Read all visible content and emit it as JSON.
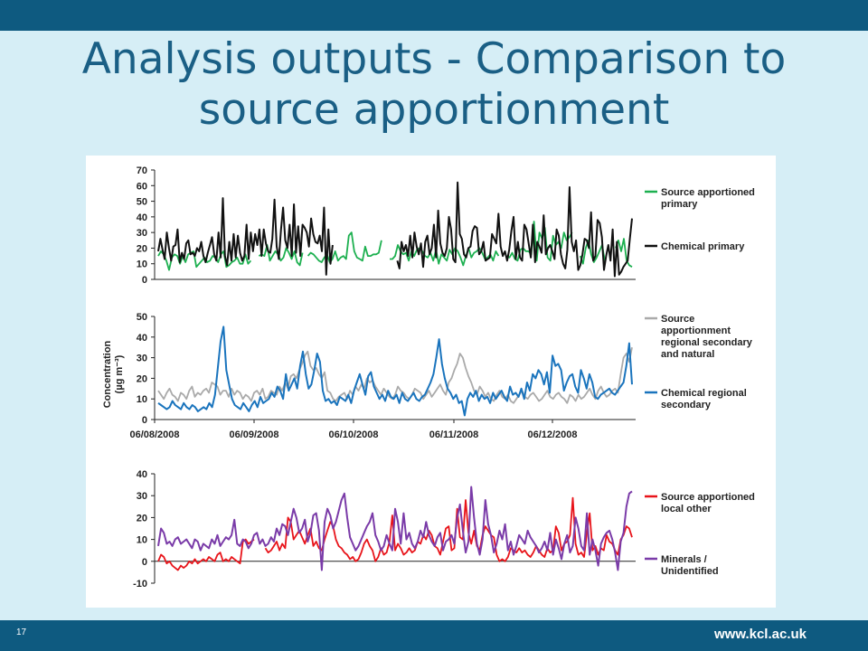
{
  "header": {
    "title_line1": "Analysis outputs - Comparison to",
    "title_line2": "source apportionment"
  },
  "footer": {
    "slide_number": "17",
    "url": "www.kcl.ac.uk"
  },
  "chart_data": [
    {
      "type": "line",
      "ylim": [
        0,
        70
      ],
      "yticks": [
        "0",
        "10",
        "20",
        "30",
        "40",
        "50",
        "60",
        "70"
      ],
      "ylabel": "",
      "series": [
        {
          "name": "Source apportioned primary",
          "color": "#1db050",
          "values": [
            15,
            18,
            16,
            12,
            6,
            14,
            16,
            15,
            10,
            15,
            11,
            16,
            17,
            18,
            8,
            10,
            12,
            14,
            11,
            12,
            15,
            14,
            11,
            16,
            18,
            8,
            9,
            11,
            12,
            14,
            10,
            10,
            16,
            10,
            12,
            null,
            null,
            15,
            16,
            15,
            22,
            12,
            15,
            18,
            16,
            12,
            14,
            20,
            17,
            13,
            18,
            11,
            9,
            17,
            null,
            15,
            17,
            16,
            14,
            12,
            11,
            14,
            16,
            11,
            13,
            18,
            12,
            14,
            15,
            13,
            28,
            30,
            18,
            14,
            13,
            12,
            21,
            15,
            15,
            16,
            16,
            17,
            25,
            null,
            null,
            13,
            13,
            15,
            22,
            18,
            16,
            17,
            12,
            18,
            15,
            19,
            20,
            18,
            15,
            14,
            17,
            12,
            19,
            10,
            16,
            14,
            12,
            19,
            16,
            20,
            18,
            14,
            9,
            15,
            20,
            14,
            17,
            18,
            20,
            17,
            13,
            14,
            16,
            12,
            18,
            15,
            null,
            null,
            15,
            14,
            17,
            13,
            12,
            19,
            20,
            18,
            18,
            16,
            37,
            12,
            30,
            26,
            33,
            14,
            12,
            28,
            22,
            24,
            20,
            30,
            25,
            27,
            30,
            null,
            null,
            15,
            10,
            20,
            25,
            16,
            11,
            14,
            18,
            22,
            12,
            null,
            null,
            null,
            20,
            25,
            18,
            26,
            12,
            9,
            8
          ]
        },
        {
          "name": "Chemical primary",
          "color": "#111111",
          "values": [
            18,
            26,
            19,
            13,
            30,
            20,
            12,
            21,
            22,
            32,
            11,
            17,
            13,
            23,
            25,
            16,
            17,
            15,
            20,
            18,
            24,
            15,
            11,
            17,
            22,
            27,
            16,
            12,
            30,
            14,
            52,
            15,
            9,
            24,
            12,
            29,
            14,
            28,
            17,
            12,
            15,
            35,
            13,
            30,
            18,
            29,
            22,
            32,
            15,
            32,
            23,
            18,
            17,
            26,
            51,
            21,
            13,
            32,
            46,
            25,
            20,
            35,
            15,
            48,
            17,
            34,
            15,
            35,
            33,
            30,
            21,
            39,
            29,
            24,
            23,
            28,
            18,
            46,
            3,
            32,
            10,
            22,
            null,
            null,
            null,
            null,
            null,
            null,
            null,
            null,
            null,
            null,
            null,
            null,
            null,
            null,
            null,
            null,
            null,
            null,
            null,
            null,
            null,
            null,
            null,
            null,
            null,
            null,
            null,
            null,
            null,
            12,
            7,
            24,
            18,
            22,
            15,
            28,
            14,
            30,
            21,
            16,
            23,
            8,
            24,
            28,
            16,
            20,
            35,
            14,
            44,
            23,
            17,
            15,
            20,
            40,
            32,
            13,
            11,
            62,
            29,
            26,
            16,
            14,
            20,
            21,
            31,
            34,
            33,
            16,
            18,
            24,
            12,
            13,
            14,
            29,
            26,
            23,
            42,
            21,
            15,
            18,
            12,
            19,
            31,
            40,
            13,
            24,
            14,
            12,
            35,
            32,
            23,
            14,
            35,
            11,
            24,
            21,
            17,
            41,
            16,
            20,
            22,
            18,
            13,
            32,
            28,
            16,
            10,
            7,
            19,
            59,
            24,
            18,
            25,
            6,
            9,
            16,
            26,
            25,
            20,
            43,
            12,
            15,
            38,
            36,
            27,
            6,
            15,
            22,
            12,
            32,
            2,
            24,
            3,
            5,
            8,
            10,
            12,
            26,
            39
          ]
        }
      ]
    },
    {
      "type": "line",
      "ylim": [
        0,
        50
      ],
      "yticks": [
        "0",
        "10",
        "20",
        "30",
        "40",
        "50"
      ],
      "ylabel": "Concentration (µg m⁻³)",
      "x_tick_labels": [
        "06/08/2008",
        "06/09/2008",
        "06/10/2008",
        "06/11/2008",
        "06/12/2008"
      ],
      "series": [
        {
          "name": "Source apportionment regional secondary and natural",
          "color": "#aaaaaa",
          "values": [
            14,
            12,
            10,
            13,
            15,
            12,
            11,
            9,
            13,
            12,
            10,
            14,
            16,
            11,
            13,
            12,
            14,
            15,
            13,
            18,
            17,
            16,
            12,
            14,
            14,
            11,
            15,
            12,
            14,
            13,
            10,
            12,
            11,
            9,
            13,
            14,
            12,
            15,
            10,
            11,
            14,
            13,
            12,
            16,
            14,
            18,
            15,
            21,
            22,
            20,
            24,
            27,
            31,
            33,
            26,
            24,
            25,
            22,
            20,
            23,
            14,
            13,
            10,
            9,
            11,
            12,
            13,
            10,
            14,
            12,
            16,
            14,
            17,
            15,
            20,
            18,
            19,
            16,
            14,
            12,
            15,
            13,
            11,
            10,
            12,
            16,
            14,
            13,
            11,
            10,
            12,
            15,
            14,
            13,
            10,
            12,
            14,
            11,
            13,
            15,
            17,
            14,
            12,
            18,
            20,
            24,
            27,
            32,
            30,
            25,
            21,
            18,
            14,
            12,
            16,
            14,
            11,
            13,
            10,
            9,
            12,
            14,
            11,
            10,
            12,
            9,
            8,
            10,
            12,
            14,
            11,
            10,
            12,
            13,
            11,
            9,
            10,
            12,
            14,
            11,
            10,
            12,
            13,
            11,
            10,
            8,
            12,
            11,
            9,
            12,
            10,
            11,
            13,
            15,
            12,
            10,
            14,
            16,
            13,
            11,
            12,
            14,
            15,
            13,
            22,
            30,
            32,
            28,
            35
          ]
        },
        {
          "name": "Chemical regional secondary",
          "color": "#1a74bd",
          "values": [
            8,
            7,
            6,
            5,
            6,
            9,
            7,
            6,
            5,
            8,
            6,
            5,
            7,
            6,
            4,
            5,
            6,
            5,
            8,
            6,
            12,
            25,
            38,
            45,
            24,
            17,
            10,
            7,
            6,
            5,
            8,
            6,
            4,
            7,
            9,
            6,
            11,
            8,
            9,
            10,
            13,
            11,
            16,
            14,
            10,
            22,
            14,
            17,
            20,
            15,
            26,
            33,
            22,
            15,
            17,
            24,
            32,
            28,
            14,
            9,
            10,
            8,
            9,
            7,
            11,
            10,
            9,
            12,
            8,
            14,
            18,
            22,
            17,
            12,
            21,
            23,
            16,
            13,
            10,
            12,
            9,
            14,
            11,
            10,
            12,
            8,
            13,
            10,
            9,
            11,
            13,
            10,
            9,
            11,
            12,
            15,
            18,
            22,
            30,
            39,
            27,
            20,
            15,
            13,
            10,
            12,
            8,
            9,
            2,
            10,
            13,
            11,
            14,
            9,
            12,
            10,
            11,
            8,
            13,
            10,
            12,
            14,
            11,
            9,
            16,
            12,
            13,
            11,
            15,
            10,
            18,
            14,
            22,
            20,
            24,
            22,
            17,
            23,
            13,
            31,
            26,
            27,
            24,
            14,
            18,
            21,
            22,
            16,
            13,
            24,
            20,
            15,
            22,
            18,
            11,
            10,
            12,
            13,
            14,
            15,
            13,
            12,
            14,
            16,
            18,
            26,
            37,
            17
          ]
        }
      ]
    },
    {
      "type": "line",
      "ylim": [
        -10,
        40
      ],
      "yticks": [
        "-10",
        "0",
        "10",
        "20",
        "30",
        "40"
      ],
      "ylabel": "",
      "series": [
        {
          "name": "Source apportioned local other",
          "color": "#e8141a",
          "values": [
            0,
            3,
            2,
            -1,
            0,
            -2,
            -3,
            -4,
            -2,
            -3,
            -2,
            0,
            -1,
            1,
            -1,
            0,
            1,
            0,
            2,
            1,
            0,
            3,
            4,
            0,
            1,
            0,
            2,
            1,
            0,
            -1,
            9,
            10,
            8,
            9,
            10,
            null,
            null,
            null,
            6,
            4,
            5,
            7,
            9,
            5,
            8,
            6,
            20,
            18,
            10,
            12,
            14,
            11,
            8,
            12,
            15,
            7,
            9,
            6,
            5,
            10,
            14,
            18,
            16,
            10,
            7,
            6,
            4,
            3,
            1,
            2,
            0,
            1,
            4,
            8,
            10,
            7,
            5,
            0,
            2,
            6,
            3,
            4,
            9,
            21,
            5,
            8,
            6,
            3,
            4,
            6,
            4,
            5,
            9,
            8,
            12,
            10,
            14,
            12,
            7,
            6,
            3,
            9,
            15,
            16,
            5,
            6,
            24,
            11,
            10,
            28,
            13,
            8,
            14,
            7,
            5,
            12,
            16,
            14,
            12,
            11,
            3,
            0,
            1,
            0,
            2,
            6,
            5,
            4,
            6,
            4,
            5,
            3,
            2,
            4,
            7,
            5,
            3,
            2,
            6,
            4,
            5,
            16,
            13,
            5,
            8,
            9,
            12,
            29,
            8,
            3,
            4,
            2,
            13,
            22,
            5,
            7,
            3,
            6,
            5,
            12,
            9,
            8,
            5,
            3,
            10,
            12,
            16,
            15,
            11
          ]
        },
        {
          "name": "Minerals / Unidentified",
          "color": "#7a3ba8",
          "values": [
            7,
            15,
            13,
            8,
            9,
            7,
            10,
            11,
            8,
            9,
            10,
            8,
            6,
            10,
            9,
            5,
            8,
            7,
            6,
            10,
            8,
            12,
            7,
            9,
            11,
            10,
            12,
            19,
            8,
            7,
            10,
            9,
            6,
            8,
            12,
            13,
            8,
            10,
            7,
            8,
            11,
            9,
            15,
            12,
            17,
            16,
            12,
            18,
            24,
            20,
            13,
            15,
            19,
            9,
            13,
            21,
            22,
            14,
            -4,
            18,
            24,
            21,
            15,
            18,
            23,
            28,
            31,
            20,
            11,
            8,
            5,
            7,
            10,
            13,
            16,
            18,
            22,
            12,
            9,
            5,
            7,
            12,
            8,
            5,
            24,
            18,
            8,
            22,
            10,
            13,
            8,
            6,
            9,
            14,
            11,
            18,
            12,
            9,
            7,
            11,
            13,
            5,
            9,
            10,
            12,
            8,
            20,
            26,
            14,
            4,
            9,
            34,
            20,
            8,
            3,
            10,
            28,
            17,
            12,
            4,
            8,
            14,
            10,
            17,
            5,
            9,
            3,
            7,
            12,
            10,
            8,
            14,
            11,
            9,
            7,
            4,
            6,
            9,
            5,
            13,
            3,
            10,
            6,
            1,
            8,
            12,
            4,
            7,
            20,
            15,
            7,
            5,
            22,
            3,
            10,
            5,
            -2,
            8,
            11,
            13,
            14,
            10,
            4,
            -4,
            9,
            13,
            25,
            31,
            32
          ]
        }
      ]
    }
  ]
}
